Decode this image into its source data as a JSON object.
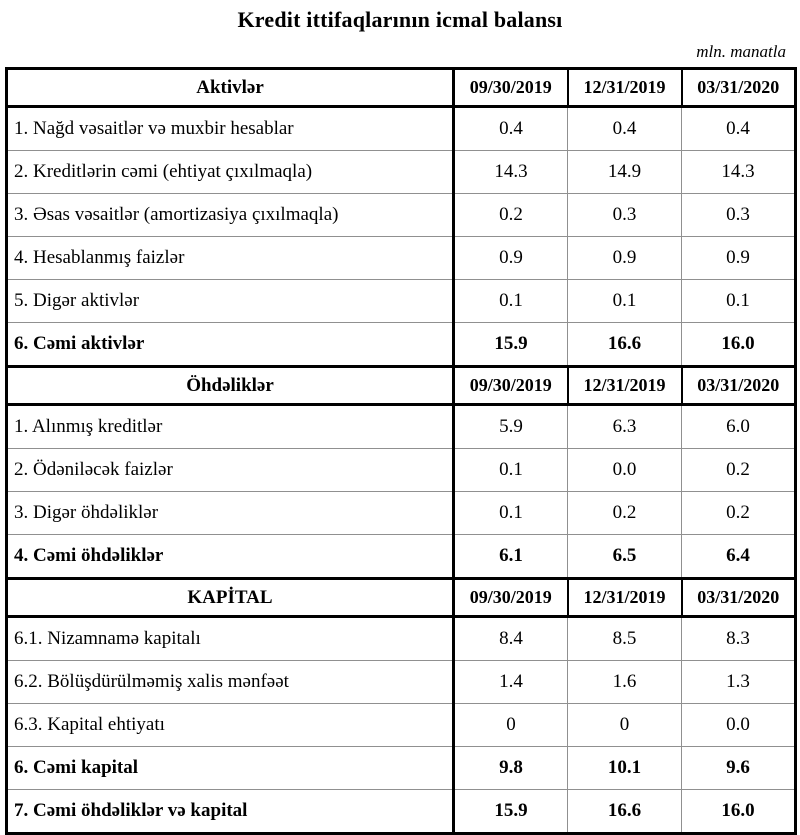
{
  "page": {
    "title": "Kredit ittifaqlarının icmal balansı",
    "unit_note": "mln. manatla"
  },
  "table": {
    "columns": [
      "09/30/2019",
      "12/31/2019",
      "03/31/2020"
    ],
    "sections": [
      {
        "header": "Aktivlər",
        "rows": [
          {
            "label": "1. Nağd vəsaitlər və muxbir hesablar",
            "values": [
              "0.4",
              "0.4",
              "0.4"
            ]
          },
          {
            "label": "2. Kreditlərin cəmi (ehtiyat çıxılmaqla)",
            "values": [
              "14.3",
              "14.9",
              "14.3"
            ]
          },
          {
            "label": "3. Əsas vəsaitlər (amortizasiya çıxılmaqla)",
            "values": [
              "0.2",
              "0.3",
              "0.3"
            ]
          },
          {
            "label": "4. Hesablanmış faizlər",
            "values": [
              "0.9",
              "0.9",
              "0.9"
            ]
          },
          {
            "label": "5. Digər aktivlər",
            "values": [
              "0.1",
              "0.1",
              "0.1"
            ]
          },
          {
            "label": "6. Cəmi aktivlər",
            "values": [
              "15.9",
              "16.6",
              "16.0"
            ]
          }
        ]
      },
      {
        "header": "Öhdəliklər",
        "rows": [
          {
            "label": "1. Alınmış kreditlər",
            "values": [
              "5.9",
              "6.3",
              "6.0"
            ]
          },
          {
            "label": "2. Ödəniləcək faizlər",
            "values": [
              "0.1",
              "0.0",
              "0.2"
            ]
          },
          {
            "label": "3. Digər öhdəliklər",
            "values": [
              "0.1",
              "0.2",
              "0.2"
            ]
          },
          {
            "label": "4. Cəmi öhdəliklər",
            "values": [
              "6.1",
              "6.5",
              "6.4"
            ]
          }
        ]
      },
      {
        "header": "KAPİTAL",
        "rows": [
          {
            "label": "6.1. Nizamnamə kapitalı",
            "values": [
              "8.4",
              "8.5",
              "8.3"
            ]
          },
          {
            "label": "6.2. Bölüşdürülməmiş xalis mənfəət",
            "values": [
              "1.4",
              "1.6",
              "1.3"
            ]
          },
          {
            "label": "6.3. Kapital ehtiyatı",
            "values": [
              "0",
              "0",
              "0.0"
            ]
          },
          {
            "label": "6. Cəmi kapital",
            "values": [
              "9.8",
              "10.1",
              "9.6"
            ]
          },
          {
            "label": "7. Cəmi öhdəliklər və kapital",
            "values": [
              "15.9",
              "16.6",
              "16.0"
            ]
          }
        ]
      }
    ]
  }
}
